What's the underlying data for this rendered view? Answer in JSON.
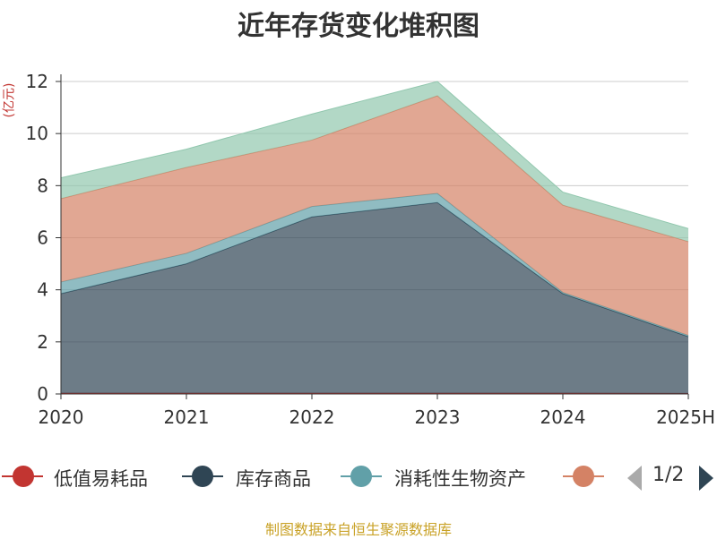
{
  "title": "近年存货变化堆积图",
  "unit_label": "(亿元)",
  "source": "制图数据来自恒生聚源数据库",
  "pager": {
    "text": "1/2"
  },
  "legend": [
    {
      "name": "低值易耗品",
      "color": "#c23531"
    },
    {
      "name": "库存商品",
      "color": "#2f4554"
    },
    {
      "name": "消耗性生物资产",
      "color": "#61a0a8"
    },
    {
      "name": "",
      "color": "#d48265"
    }
  ],
  "chart_data": {
    "type": "area",
    "stacked": true,
    "categories": [
      "2020",
      "2021",
      "2022",
      "2023",
      "2024",
      "2025H"
    ],
    "ylim": [
      0,
      12
    ],
    "yticks": [
      0,
      2,
      4,
      6,
      8,
      10,
      12
    ],
    "grid": true,
    "legend_position": "bottom",
    "series": [
      {
        "name": "低值易耗品",
        "color": "#c23531",
        "values": [
          0.03,
          0.03,
          0.03,
          0.03,
          0.03,
          0.02
        ]
      },
      {
        "name": "库存商品",
        "color": "#2f4554",
        "values": [
          3.82,
          4.97,
          6.77,
          7.32,
          3.82,
          2.18
        ]
      },
      {
        "name": "消耗性生物资产",
        "color": "#61a0a8",
        "values": [
          0.45,
          0.4,
          0.4,
          0.35,
          0.05,
          0.05
        ]
      },
      {
        "color": "#d48265",
        "values": [
          3.2,
          3.3,
          2.55,
          3.75,
          3.35,
          3.6
        ]
      },
      {
        "color": "#91c7ae",
        "values": [
          0.8,
          0.7,
          1.0,
          0.55,
          0.5,
          0.5
        ]
      }
    ]
  }
}
